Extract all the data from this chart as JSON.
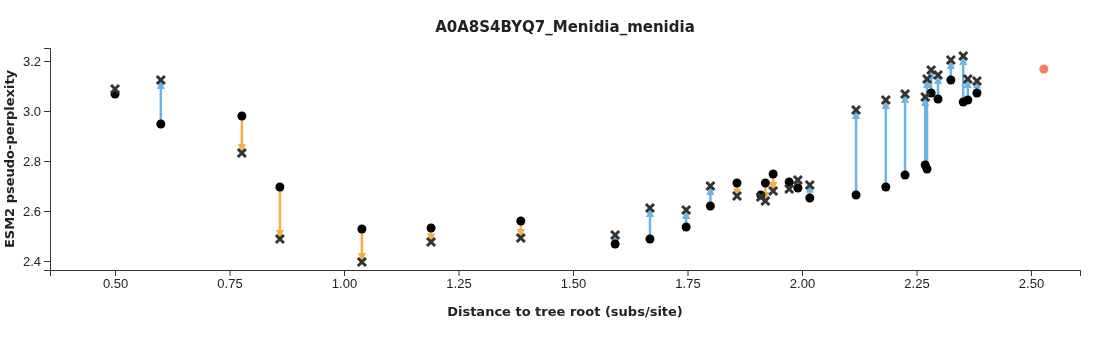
{
  "chart_data": {
    "type": "scatter",
    "title": "A0A8S4BYQ7_Menidia_menidia",
    "xlabel": "Distance to tree root (subs/site)",
    "ylabel": "ESM2 pseudo-perplexity",
    "xlim": [
      0.358,
      2.607
    ],
    "ylim": [
      2.364,
      3.252
    ],
    "xticks": [
      {
        "value": 0.5,
        "label": "0.50"
      },
      {
        "value": 0.75,
        "label": "0.75"
      },
      {
        "value": 1,
        "label": "1.00"
      },
      {
        "value": 1.25,
        "label": "1.25"
      },
      {
        "value": 1.5,
        "label": "1.50"
      },
      {
        "value": 1.75,
        "label": "1.75"
      },
      {
        "value": 2,
        "label": "2.00"
      },
      {
        "value": 2.25,
        "label": "2.25"
      },
      {
        "value": 2.5,
        "label": "2.50"
      }
    ],
    "yticks": [
      {
        "value": 2.4,
        "label": "2.4"
      },
      {
        "value": 2.6,
        "label": "2.6"
      },
      {
        "value": 2.8,
        "label": "2.8"
      },
      {
        "value": 3.0,
        "label": "3.0"
      },
      {
        "value": 3.2,
        "label": "3.2"
      }
    ],
    "series": [
      {
        "marker": "circle",
        "color": "#000000",
        "x": [
          0.5,
          0.6,
          0.777,
          0.86,
          1.039,
          1.19,
          1.386,
          1.592,
          1.668,
          1.747,
          1.8,
          1.858,
          1.91,
          1.92,
          1.937,
          1.972,
          1.991,
          2.017,
          2.118,
          2.183,
          2.225,
          2.269,
          2.273,
          2.282,
          2.297,
          2.325,
          2.352,
          2.362,
          2.382
        ],
        "values": [
          3.068,
          2.948,
          2.98,
          2.696,
          2.528,
          2.532,
          2.56,
          2.468,
          2.488,
          2.536,
          2.62,
          2.712,
          2.664,
          2.712,
          2.748,
          2.716,
          2.692,
          2.652,
          2.664,
          2.696,
          2.744,
          2.784,
          2.768,
          3.072,
          3.048,
          3.124,
          3.036,
          3.044,
          3.072
        ]
      },
      {
        "marker": "cross",
        "color": "#333333",
        "x": [
          0.5,
          0.6,
          0.777,
          0.86,
          1.039,
          1.19,
          1.386,
          1.592,
          1.668,
          1.747,
          1.8,
          1.858,
          1.91,
          1.92,
          1.937,
          1.972,
          1.991,
          2.017,
          2.118,
          2.183,
          2.225,
          2.269,
          2.273,
          2.282,
          2.297,
          2.325,
          2.352,
          2.362,
          2.382
        ],
        "values": [
          3.088,
          3.124,
          2.832,
          2.488,
          2.396,
          2.476,
          2.492,
          2.504,
          2.612,
          2.604,
          2.7,
          2.66,
          2.656,
          2.64,
          2.68,
          2.688,
          2.724,
          2.704,
          3.004,
          3.044,
          3.068,
          3.056,
          3.128,
          3.164,
          3.144,
          3.204,
          3.22,
          3.128,
          3.12
        ]
      },
      {
        "marker": "circle",
        "color": "#f08060",
        "x": [
          2.528
        ],
        "values": [
          3.168
        ]
      }
    ]
  }
}
